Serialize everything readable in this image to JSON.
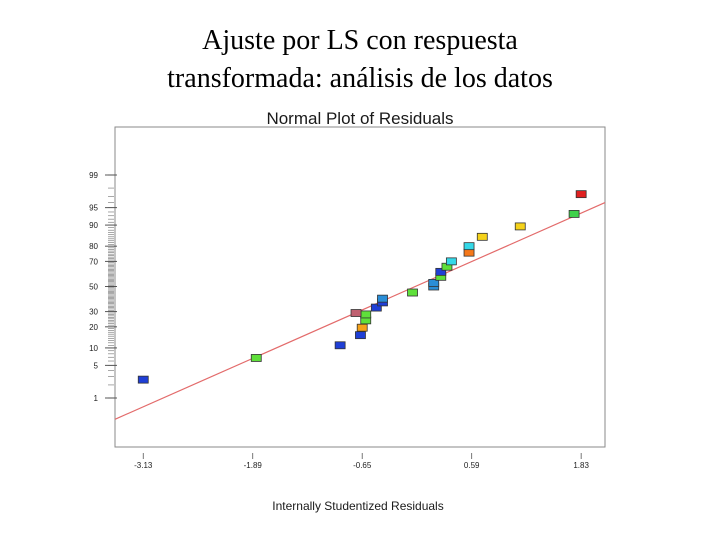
{
  "slide": {
    "title_line1": "Ajuste por LS con respuesta",
    "title_line2": "transformada: análisis de los datos"
  },
  "chart_data": {
    "type": "scatter",
    "title": "Normal Plot of Residuals",
    "xlabel": "Internally Studentized Residuals",
    "ylabel": "",
    "x_ticks": [
      -3.13,
      -1.89,
      -0.65,
      0.59,
      1.83
    ],
    "x_tick_labels": [
      "-3.13",
      "-1.89",
      "-0.65",
      "0.59",
      "1.83"
    ],
    "xlim": [
      -3.45,
      2.1
    ],
    "y_ticks": [
      1,
      5,
      10,
      20,
      30,
      50,
      70,
      80,
      90,
      95,
      99
    ],
    "y_tick_labels": [
      "1",
      "5",
      "10",
      "20",
      "30",
      "50",
      "70",
      "80",
      "90",
      "95",
      "99"
    ],
    "y_scale": "normal-probability",
    "grid": false,
    "reference_line": {
      "color": "#e36b6b",
      "from": [
        -3.45,
        0.28
      ],
      "to": [
        2.1,
        96.0
      ]
    },
    "points": [
      {
        "x": -3.13,
        "y": 2.6,
        "color": "#1f3fd6"
      },
      {
        "x": -1.85,
        "y": 6.8,
        "color": "#5fe03a"
      },
      {
        "x": -0.9,
        "y": 11.0,
        "color": "#1f3fd6"
      },
      {
        "x": -0.67,
        "y": 15.5,
        "color": "#1f3fd6"
      },
      {
        "x": -0.65,
        "y": 19.5,
        "color": "#f5a21a"
      },
      {
        "x": -0.61,
        "y": 24.0,
        "color": "#5fe03a"
      },
      {
        "x": -0.61,
        "y": 28.0,
        "color": "#5fe03a"
      },
      {
        "x": -0.72,
        "y": 29.0,
        "color": "#c06070"
      },
      {
        "x": -0.49,
        "y": 33.0,
        "color": "#1f3fd6"
      },
      {
        "x": -0.42,
        "y": 37.0,
        "color": "#1f3fd6"
      },
      {
        "x": -0.42,
        "y": 40.0,
        "color": "#2a8ed8"
      },
      {
        "x": -0.08,
        "y": 45.0,
        "color": "#5fe03a"
      },
      {
        "x": 0.16,
        "y": 50.0,
        "color": "#2a8ed8"
      },
      {
        "x": 0.16,
        "y": 53.0,
        "color": "#2a8ed8"
      },
      {
        "x": 0.24,
        "y": 58.0,
        "color": "#5fe03a"
      },
      {
        "x": 0.24,
        "y": 62.0,
        "color": "#1f3fd6"
      },
      {
        "x": 0.31,
        "y": 66.0,
        "color": "#5fe03a"
      },
      {
        "x": 0.36,
        "y": 70.0,
        "color": "#35d8e8"
      },
      {
        "x": 0.56,
        "y": 76.0,
        "color": "#f5781a"
      },
      {
        "x": 0.56,
        "y": 80.0,
        "color": "#35d8e8"
      },
      {
        "x": 0.71,
        "y": 85.0,
        "color": "#f5d21a"
      },
      {
        "x": 1.14,
        "y": 89.5,
        "color": "#f5d21a"
      },
      {
        "x": 1.75,
        "y": 93.5,
        "color": "#3fd14a"
      },
      {
        "x": 1.83,
        "y": 97.3,
        "color": "#e02020"
      }
    ]
  }
}
